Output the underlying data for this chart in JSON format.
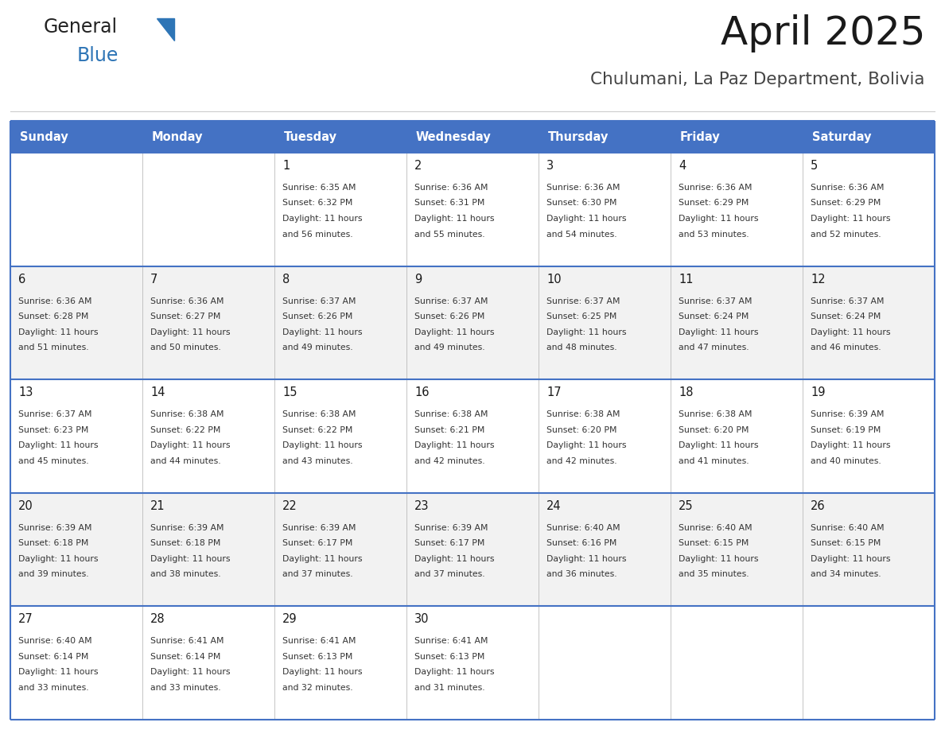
{
  "title": "April 2025",
  "subtitle": "Chulumani, La Paz Department, Bolivia",
  "header_bg": "#4472C4",
  "header_text_color": "#FFFFFF",
  "days_of_week": [
    "Sunday",
    "Monday",
    "Tuesday",
    "Wednesday",
    "Thursday",
    "Friday",
    "Saturday"
  ],
  "bg_color": "#FFFFFF",
  "cell_bg_even": "#F2F2F2",
  "cell_bg_odd": "#FFFFFF",
  "cell_text_color": "#333333",
  "border_color": "#4472C4",
  "line_color_inner": "#B8C7E0",
  "calendar": [
    [
      {
        "day": "",
        "sunrise": "",
        "sunset": "",
        "daylight": ""
      },
      {
        "day": "",
        "sunrise": "",
        "sunset": "",
        "daylight": ""
      },
      {
        "day": "1",
        "sunrise": "6:35 AM",
        "sunset": "6:32 PM",
        "daylight": "11 hours and 56 minutes."
      },
      {
        "day": "2",
        "sunrise": "6:36 AM",
        "sunset": "6:31 PM",
        "daylight": "11 hours and 55 minutes."
      },
      {
        "day": "3",
        "sunrise": "6:36 AM",
        "sunset": "6:30 PM",
        "daylight": "11 hours and 54 minutes."
      },
      {
        "day": "4",
        "sunrise": "6:36 AM",
        "sunset": "6:29 PM",
        "daylight": "11 hours and 53 minutes."
      },
      {
        "day": "5",
        "sunrise": "6:36 AM",
        "sunset": "6:29 PM",
        "daylight": "11 hours and 52 minutes."
      }
    ],
    [
      {
        "day": "6",
        "sunrise": "6:36 AM",
        "sunset": "6:28 PM",
        "daylight": "11 hours and 51 minutes."
      },
      {
        "day": "7",
        "sunrise": "6:36 AM",
        "sunset": "6:27 PM",
        "daylight": "11 hours and 50 minutes."
      },
      {
        "day": "8",
        "sunrise": "6:37 AM",
        "sunset": "6:26 PM",
        "daylight": "11 hours and 49 minutes."
      },
      {
        "day": "9",
        "sunrise": "6:37 AM",
        "sunset": "6:26 PM",
        "daylight": "11 hours and 49 minutes."
      },
      {
        "day": "10",
        "sunrise": "6:37 AM",
        "sunset": "6:25 PM",
        "daylight": "11 hours and 48 minutes."
      },
      {
        "day": "11",
        "sunrise": "6:37 AM",
        "sunset": "6:24 PM",
        "daylight": "11 hours and 47 minutes."
      },
      {
        "day": "12",
        "sunrise": "6:37 AM",
        "sunset": "6:24 PM",
        "daylight": "11 hours and 46 minutes."
      }
    ],
    [
      {
        "day": "13",
        "sunrise": "6:37 AM",
        "sunset": "6:23 PM",
        "daylight": "11 hours and 45 minutes."
      },
      {
        "day": "14",
        "sunrise": "6:38 AM",
        "sunset": "6:22 PM",
        "daylight": "11 hours and 44 minutes."
      },
      {
        "day": "15",
        "sunrise": "6:38 AM",
        "sunset": "6:22 PM",
        "daylight": "11 hours and 43 minutes."
      },
      {
        "day": "16",
        "sunrise": "6:38 AM",
        "sunset": "6:21 PM",
        "daylight": "11 hours and 42 minutes."
      },
      {
        "day": "17",
        "sunrise": "6:38 AM",
        "sunset": "6:20 PM",
        "daylight": "11 hours and 42 minutes."
      },
      {
        "day": "18",
        "sunrise": "6:38 AM",
        "sunset": "6:20 PM",
        "daylight": "11 hours and 41 minutes."
      },
      {
        "day": "19",
        "sunrise": "6:39 AM",
        "sunset": "6:19 PM",
        "daylight": "11 hours and 40 minutes."
      }
    ],
    [
      {
        "day": "20",
        "sunrise": "6:39 AM",
        "sunset": "6:18 PM",
        "daylight": "11 hours and 39 minutes."
      },
      {
        "day": "21",
        "sunrise": "6:39 AM",
        "sunset": "6:18 PM",
        "daylight": "11 hours and 38 minutes."
      },
      {
        "day": "22",
        "sunrise": "6:39 AM",
        "sunset": "6:17 PM",
        "daylight": "11 hours and 37 minutes."
      },
      {
        "day": "23",
        "sunrise": "6:39 AM",
        "sunset": "6:17 PM",
        "daylight": "11 hours and 37 minutes."
      },
      {
        "day": "24",
        "sunrise": "6:40 AM",
        "sunset": "6:16 PM",
        "daylight": "11 hours and 36 minutes."
      },
      {
        "day": "25",
        "sunrise": "6:40 AM",
        "sunset": "6:15 PM",
        "daylight": "11 hours and 35 minutes."
      },
      {
        "day": "26",
        "sunrise": "6:40 AM",
        "sunset": "6:15 PM",
        "daylight": "11 hours and 34 minutes."
      }
    ],
    [
      {
        "day": "27",
        "sunrise": "6:40 AM",
        "sunset": "6:14 PM",
        "daylight": "11 hours and 33 minutes."
      },
      {
        "day": "28",
        "sunrise": "6:41 AM",
        "sunset": "6:14 PM",
        "daylight": "11 hours and 33 minutes."
      },
      {
        "day": "29",
        "sunrise": "6:41 AM",
        "sunset": "6:13 PM",
        "daylight": "11 hours and 32 minutes."
      },
      {
        "day": "30",
        "sunrise": "6:41 AM",
        "sunset": "6:13 PM",
        "daylight": "11 hours and 31 minutes."
      },
      {
        "day": "",
        "sunrise": "",
        "sunset": "",
        "daylight": ""
      },
      {
        "day": "",
        "sunrise": "",
        "sunset": "",
        "daylight": ""
      },
      {
        "day": "",
        "sunrise": "",
        "sunset": "",
        "daylight": ""
      }
    ]
  ],
  "logo_text1": "General",
  "logo_text2": "Blue",
  "logo_color1": "#222222",
  "logo_color2": "#2E75B6",
  "logo_triangle_color": "#2E75B6"
}
